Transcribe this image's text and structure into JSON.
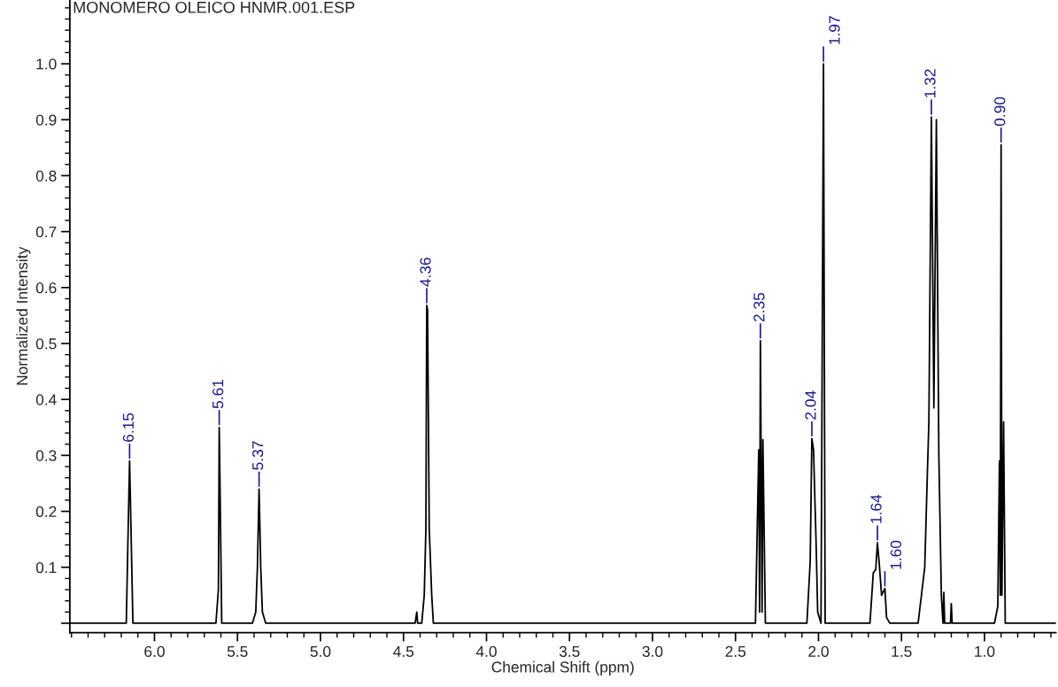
{
  "chart_data": {
    "type": "line",
    "title": "MONOMERO OLEICO HNMR.001.ESP",
    "xlabel": "Chemical Shift (ppm)",
    "ylabel": "Normalized Intensity",
    "xlim": [
      6.51,
      0.57
    ],
    "ylim": [
      -0.017,
      1.114
    ],
    "xticks": [
      {
        "value": 6,
        "label": "6.0"
      },
      5.5,
      {
        "value": 5,
        "label": "5.0"
      },
      4.5,
      {
        "value": 4,
        "label": "4.0"
      },
      3.5,
      {
        "value": 3,
        "label": "3.0"
      },
      2.5,
      {
        "value": 2,
        "label": "2.0"
      },
      1.5,
      {
        "value": 1,
        "label": "1.0"
      }
    ],
    "yticks": [
      {
        "value": 0,
        "label": null
      },
      0.1,
      0.2,
      0.3,
      0.4,
      0.5,
      0.6,
      0.7,
      0.8,
      0.9,
      {
        "value": 1,
        "label": "1.0"
      }
    ],
    "x": [
      6.51,
      6.17,
      6.155,
      6.15,
      6.145,
      6.13,
      5.63,
      5.615,
      5.61,
      5.605,
      5.595,
      5.41,
      5.39,
      5.38,
      5.37,
      5.36,
      5.35,
      5.33,
      4.43,
      4.42,
      4.415,
      4.39,
      4.375,
      4.365,
      4.36,
      4.355,
      4.345,
      4.33,
      4.32,
      2.38,
      2.36,
      2.355,
      2.35,
      2.34,
      2.335,
      2.32,
      2.07,
      2.05,
      2.04,
      2.03,
      2.015,
      2.005,
      1.985,
      1.97,
      1.96,
      1.69,
      1.67,
      1.655,
      1.645,
      1.635,
      1.62,
      1.6,
      1.59,
      1.57,
      1.4,
      1.36,
      1.345,
      1.335,
      1.32,
      1.305,
      1.29,
      1.275,
      1.26,
      1.25,
      1.245,
      1.24,
      1.205,
      1.2,
      1.195,
      0.94,
      0.92,
      0.91,
      0.905,
      0.9,
      0.895,
      0.885,
      0.875,
      0.57
    ],
    "series": [
      {
        "color": "#000000",
        "values": [
          0,
          0,
          0.22,
          0.29,
          0.22,
          0,
          0,
          0.06,
          0.35,
          0.24,
          0,
          0,
          0.02,
          0.1,
          0.24,
          0.1,
          0.02,
          0,
          0,
          0.02,
          0,
          0,
          0.05,
          0.17,
          0.568,
          0.56,
          0.17,
          0.05,
          0,
          0,
          0.31,
          0.02,
          0.505,
          0.02,
          0.328,
          0,
          0,
          0.11,
          0.33,
          0.31,
          0.15,
          0.02,
          0,
          1.0,
          0,
          0,
          0.09,
          0.096,
          0.144,
          0.11,
          0.05,
          0.062,
          0.01,
          0,
          0,
          0.1,
          0.26,
          0.36,
          0.905,
          0.385,
          0.9,
          0.3,
          0.05,
          0,
          0.055,
          0,
          0,
          0.035,
          0,
          0,
          0.03,
          0.29,
          0.05,
          0.855,
          0.05,
          0.36,
          0,
          0
        ]
      }
    ],
    "annotations": [
      {
        "text": "6.15",
        "x": 6.15,
        "y": 0.29
      },
      {
        "text": "5.61",
        "x": 5.61,
        "y": 0.35
      },
      {
        "text": "5.37",
        "x": 5.37,
        "y": 0.24
      },
      {
        "text": "4.36",
        "x": 4.36,
        "y": 0.568
      },
      {
        "text": "2.35",
        "x": 2.35,
        "y": 0.505
      },
      {
        "text": "2.04",
        "x": 2.04,
        "y": 0.33
      },
      {
        "text": "1.97",
        "x": 1.97,
        "y": 1.0
      },
      {
        "text": "1.64",
        "x": 1.645,
        "y": 0.144
      },
      {
        "text": "1.60",
        "x": 1.6,
        "y": 0.062
      },
      {
        "text": "1.32",
        "x": 1.32,
        "y": 0.905
      },
      {
        "text": "0.90",
        "x": 0.9,
        "y": 0.855
      }
    ]
  }
}
